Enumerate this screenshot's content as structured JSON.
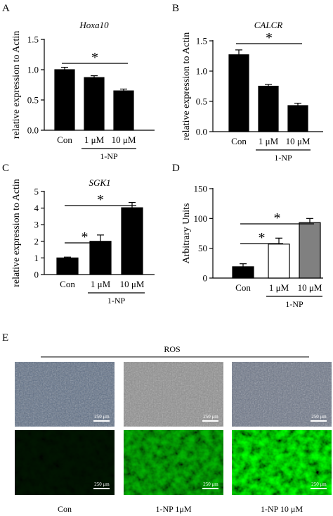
{
  "figure": {
    "panel_e": {
      "letter": "E",
      "title": "ROS",
      "scale_label": "250 μm",
      "captions": [
        "Con",
        "1-NP 1μM",
        "1-NP 10 μM"
      ]
    }
  },
  "chart_data": [
    {
      "type": "bar",
      "panel": "A",
      "title": "Hoxa10",
      "ylabel": "relative expression to Actin",
      "categories": [
        "Con",
        "1 μM",
        "10 μM"
      ],
      "group_label": "1-NP",
      "values": [
        1.0,
        0.87,
        0.65
      ],
      "errors": [
        0.04,
        0.03,
        0.03
      ],
      "ylim": [
        0,
        1.5
      ],
      "yticks": [
        "0.0",
        "0.5",
        "1.0",
        "1.5"
      ],
      "fills": [
        "#000000",
        "#000000",
        "#000000"
      ],
      "significance": [
        {
          "from": 0,
          "to": 2,
          "label": "*"
        }
      ],
      "grid": false
    },
    {
      "type": "bar",
      "panel": "B",
      "title": "CALCR",
      "ylabel": "relative expression to Actin",
      "categories": [
        "Con",
        "1 μM",
        "10 μM"
      ],
      "group_label": "1-NP",
      "values": [
        1.27,
        0.75,
        0.43
      ],
      "errors": [
        0.08,
        0.03,
        0.04
      ],
      "ylim": [
        0,
        1.5
      ],
      "yticks": [
        "0.0",
        "0.5",
        "1.0",
        "1.5"
      ],
      "fills": [
        "#000000",
        "#000000",
        "#000000"
      ],
      "significance": [
        {
          "from": 0,
          "to": 2,
          "label": "*"
        }
      ],
      "grid": false
    },
    {
      "type": "bar",
      "panel": "C",
      "title": "SGK1",
      "ylabel": "relative expression to Actin",
      "categories": [
        "Con",
        "1 μM",
        "10 μM"
      ],
      "group_label": "1-NP",
      "values": [
        1.0,
        2.0,
        4.02
      ],
      "errors": [
        0.05,
        0.38,
        0.32
      ],
      "ylim": [
        0,
        5
      ],
      "yticks": [
        "0",
        "1",
        "2",
        "3",
        "4",
        "5"
      ],
      "fills": [
        "#000000",
        "#000000",
        "#000000"
      ],
      "significance": [
        {
          "from": 0,
          "to": 1,
          "label": "*"
        },
        {
          "from": 0,
          "to": 2,
          "label": "*"
        }
      ],
      "grid": false
    },
    {
      "type": "bar",
      "panel": "D",
      "title": "",
      "ylabel": "Arbitrary Units",
      "categories": [
        "Con",
        "1 μM",
        "10 μM"
      ],
      "group_label": "1-NP",
      "values": [
        19,
        57,
        93
      ],
      "errors": [
        5,
        10,
        7
      ],
      "ylim": [
        0,
        150
      ],
      "yticks": [
        "0",
        "50",
        "100",
        "150"
      ],
      "fills": [
        "#000000",
        "#ffffff",
        "#808080"
      ],
      "significance": [
        {
          "from": 0,
          "to": 1,
          "label": "*"
        },
        {
          "from": 0,
          "to": 2,
          "label": "*"
        }
      ],
      "grid": false
    }
  ]
}
